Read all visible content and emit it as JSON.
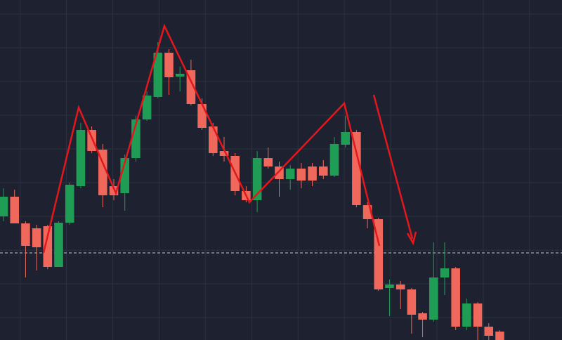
{
  "chart_data": {
    "type": "candlestick",
    "x": [
      0,
      1,
      2,
      3,
      4,
      5,
      6,
      7,
      8,
      9,
      10,
      11,
      12,
      13,
      14,
      15,
      16,
      17,
      18,
      19,
      20,
      21,
      22,
      23,
      24,
      25,
      26,
      27,
      28,
      29,
      30,
      31,
      32,
      33,
      34,
      35,
      36,
      37,
      38,
      39,
      40,
      41,
      42,
      43,
      44,
      45
    ],
    "open": [
      176,
      204,
      166,
      159,
      162,
      104,
      167,
      219,
      299,
      271,
      219,
      209,
      259,
      314,
      346,
      409,
      375,
      384,
      336,
      304,
      269,
      262,
      212,
      199,
      259,
      247,
      229,
      244,
      247,
      247,
      234,
      278,
      296,
      192,
      172,
      74,
      79,
      72,
      38,
      29,
      89,
      102,
      19,
      52,
      19,
      12
    ],
    "high": [
      216,
      214,
      169,
      164,
      164,
      169,
      224,
      309,
      304,
      279,
      229,
      264,
      319,
      354,
      424,
      414,
      389,
      399,
      344,
      309,
      289,
      266,
      219,
      269,
      274,
      254,
      249,
      252,
      252,
      256,
      289,
      319,
      299,
      196,
      174,
      86,
      84,
      74,
      40,
      139,
      139,
      104,
      59,
      54,
      24,
      14
    ],
    "low": [
      169,
      166,
      89,
      99,
      101,
      104,
      164,
      216,
      266,
      189,
      199,
      184,
      254,
      312,
      344,
      349,
      354,
      334,
      299,
      262,
      254,
      206,
      196,
      182,
      244,
      204,
      214,
      216,
      219,
      229,
      232,
      274,
      189,
      159,
      70,
      34,
      44,
      9,
      4,
      26,
      64,
      14,
      14,
      0,
      0,
      0
    ],
    "close": [
      204,
      166,
      134,
      132,
      104,
      167,
      221,
      299,
      269,
      206,
      206,
      259,
      314,
      348,
      409,
      374,
      379,
      336,
      302,
      266,
      262,
      212,
      199,
      259,
      247,
      229,
      244,
      227,
      227,
      234,
      279,
      296,
      192,
      172,
      72,
      79,
      72,
      36,
      29,
      89,
      102,
      19,
      52,
      19,
      6,
      0
    ],
    "up_color": "#1f9d55",
    "down_color": "#f0675b",
    "xlim": [
      -0.32,
      50.64
    ],
    "ylim": [
      0,
      484
    ],
    "xticks": [
      1.5,
      5.7,
      9.9,
      14.1,
      18.3,
      22.5,
      26.7,
      30.9,
      35.1,
      39.3,
      43.5,
      47.7
    ],
    "yticks": [
      32,
      80,
      128,
      176,
      224,
      272,
      320,
      368,
      416,
      464
    ],
    "grid": true,
    "price_line": 124
  }
}
